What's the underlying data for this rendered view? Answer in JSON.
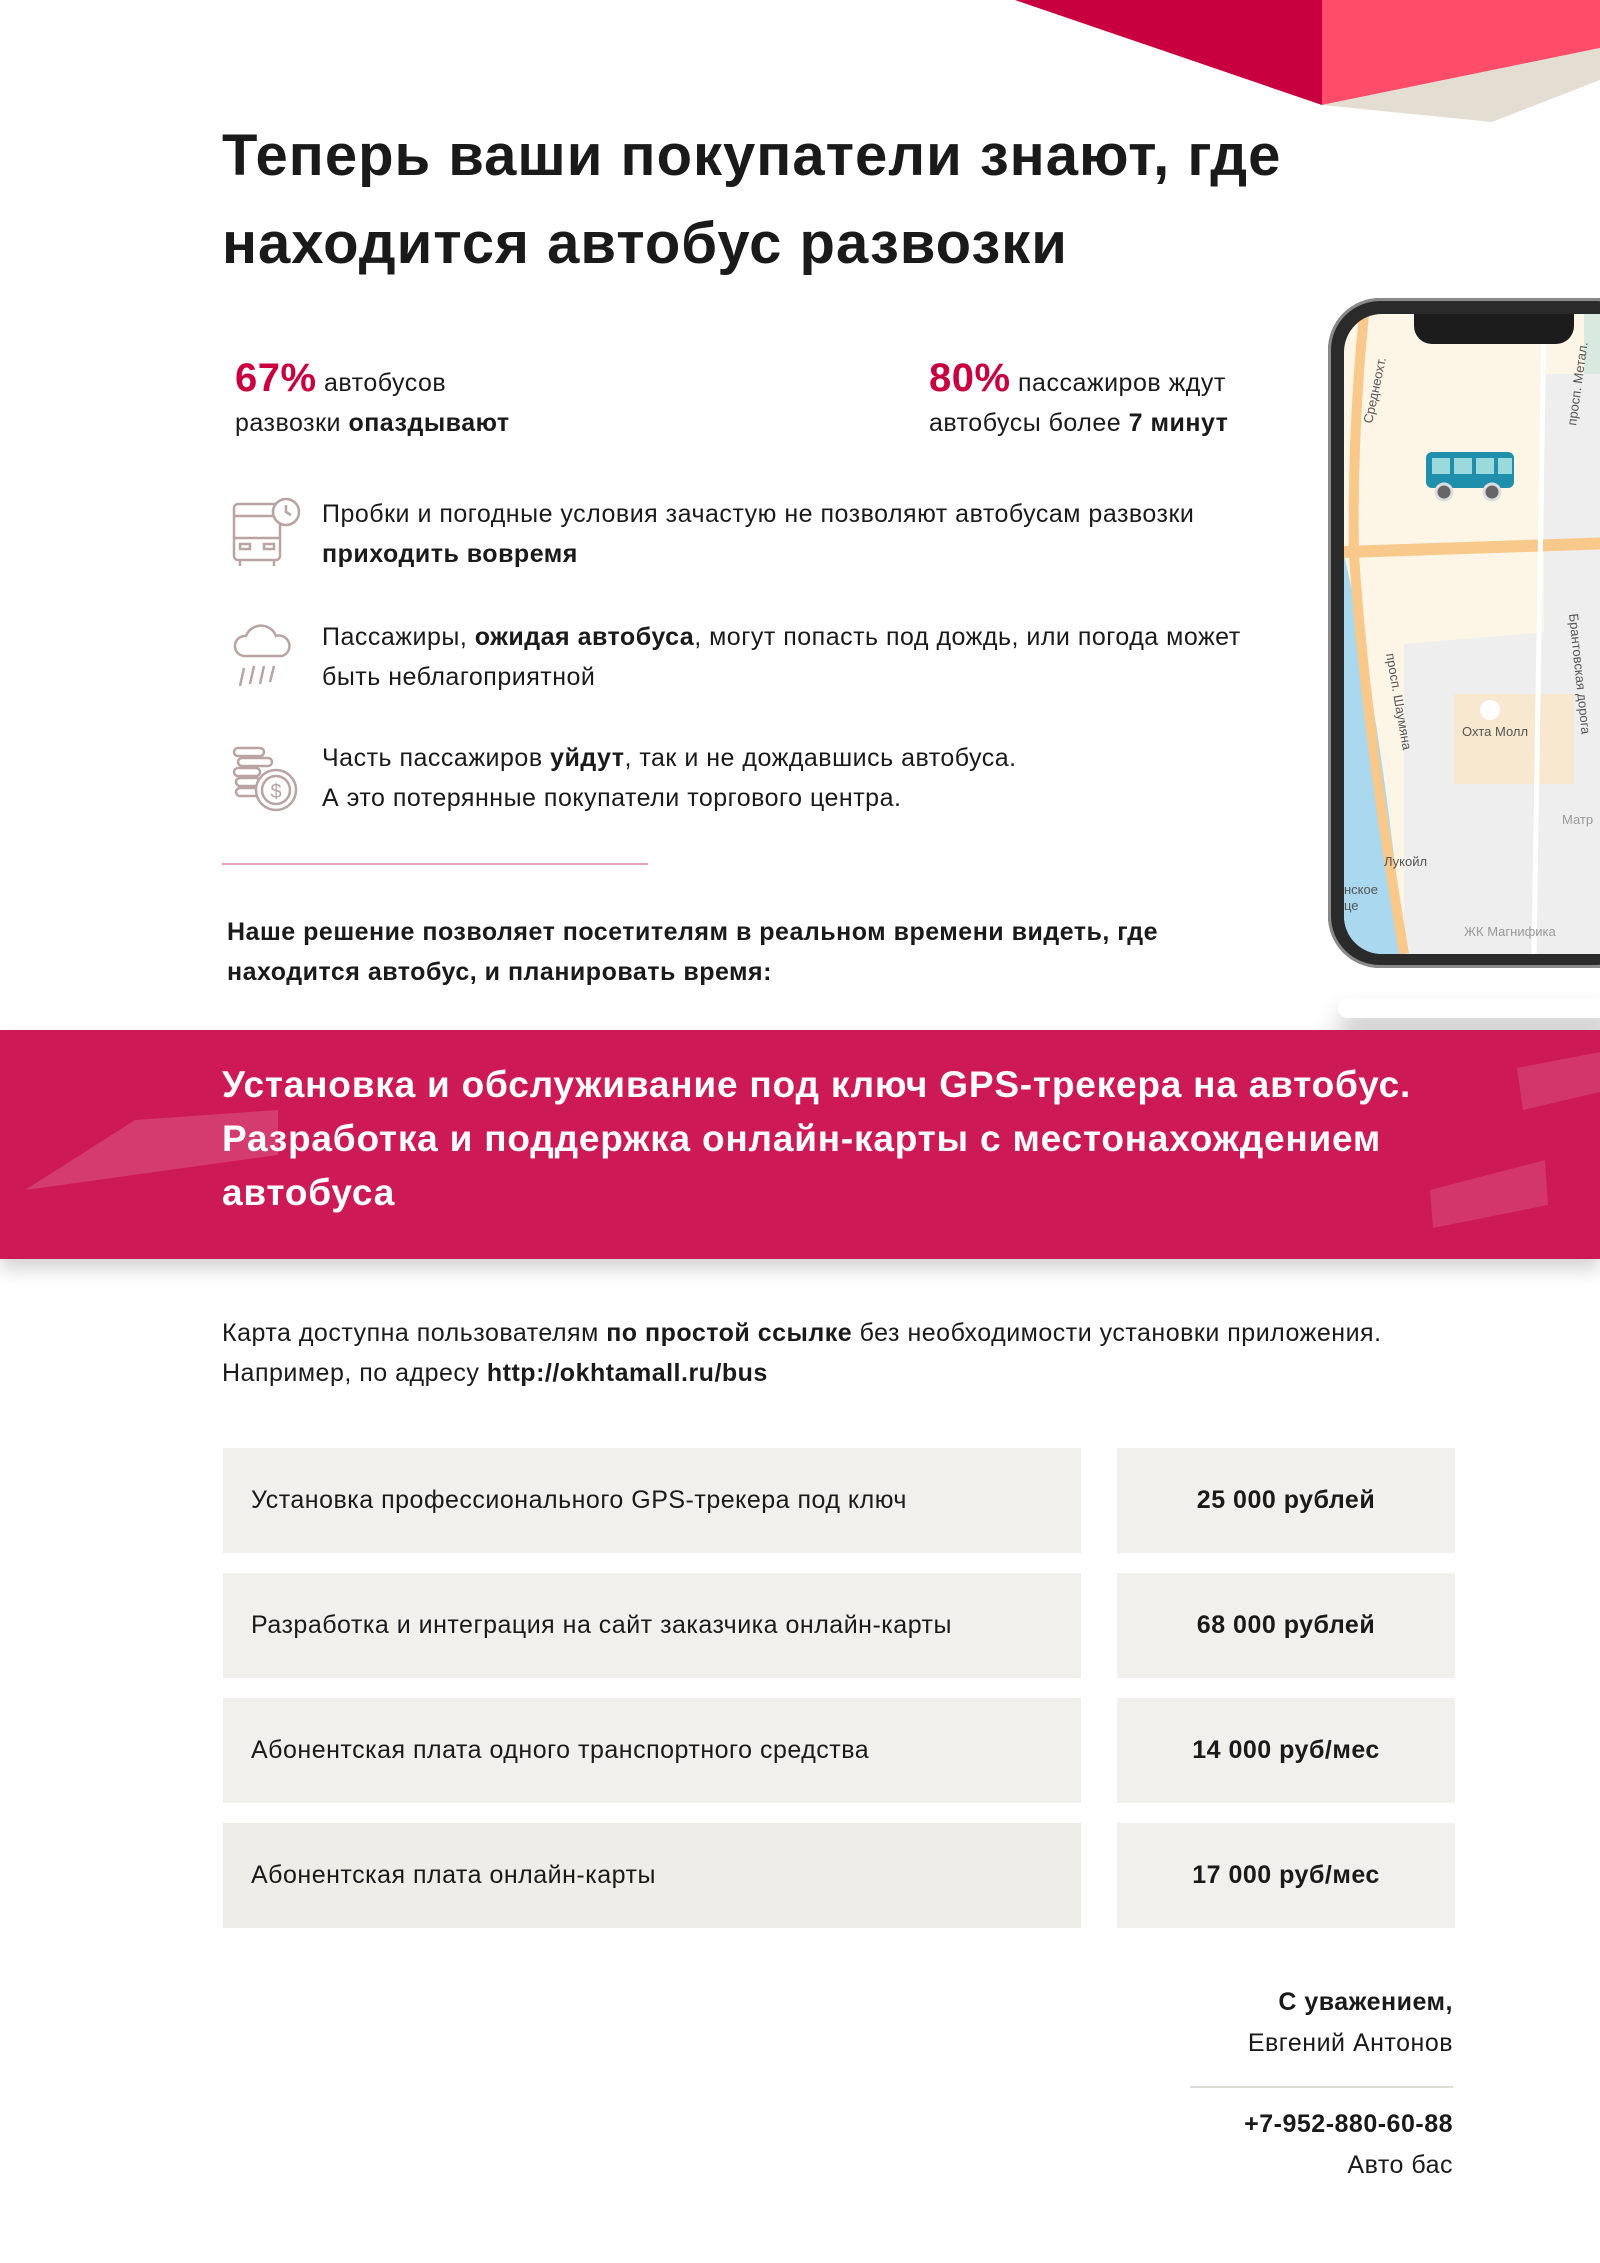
{
  "colors": {
    "accent": "#c8003f",
    "band": "#cd1955",
    "cell": "#f2f0ec",
    "icon": "#b9a3a3"
  },
  "title": "Теперь ваши покупатели знают, где находится автобус развозки",
  "stats": [
    {
      "value": "67%",
      "text1": " автобусов",
      "text2": "развозки ",
      "bold": "опаздывают"
    },
    {
      "value": "80%",
      "text1": " пассажиров ждут",
      "text2": "автобусы более ",
      "bold": "7 минут"
    }
  ],
  "features": [
    {
      "icon": "bus-clock-icon",
      "pre": "Пробки и погодные условия зачастую не позволяют автобусам развозки ",
      "bold": "приходить вовремя",
      "post": ""
    },
    {
      "icon": "rain-cloud-icon",
      "pre": "Пассажиры, ",
      "bold": "ожидая автобуса",
      "post": ", могут попасть под дождь, или погода может быть неблагоприятной"
    },
    {
      "icon": "coins-icon",
      "pre": "Часть пассажиров ",
      "bold": "уйдут",
      "post": ", так и не дождавшись автобуса.",
      "line2": "А это потерянные покупатели торгового центра."
    }
  ],
  "solution": "Наше решение позволяет посетителям в реальном времени видеть, где находится автобус, и планировать время:",
  "band": {
    "line1": "Установка и обслуживание под ключ GPS-трекера на автобус.",
    "line2": "Разработка и поддержка онлайн-карты с местонахождением",
    "line3": "автобуса"
  },
  "paragraph": {
    "pre": "Карта доступна пользователям ",
    "bold": "по простой ссылке",
    "mid": " без необходимости установки приложения. Например, по адресу ",
    "link": "http://okhtamall.ru/bus"
  },
  "map": {
    "labels": [
      "Среднеохт.",
      "просп. Метал.",
      "Брантовская дорога",
      "просп. Шаумяна",
      "Охта Молл",
      "Лукойл",
      "ЖК Магнифика",
      "Матр",
      "нское",
      "це"
    ]
  },
  "prices": [
    {
      "service": "Установка профессионального GPS-трекера под ключ",
      "price": "25 000 рублей"
    },
    {
      "service": "Разработка и интеграция на сайт заказчика онлайн-карты",
      "price": "68 000 рублей"
    },
    {
      "service": "Абонентская плата одного транспортного средства",
      "price": "14 000 руб/мес"
    },
    {
      "service": "Абонентская плата онлайн-карты",
      "price": "17 000 руб/мес"
    }
  ],
  "signature": {
    "greeting": "С уважением,",
    "name": "Евгений Антонов",
    "phone": "+7-952-880-60-88",
    "company": "Авто бас"
  }
}
